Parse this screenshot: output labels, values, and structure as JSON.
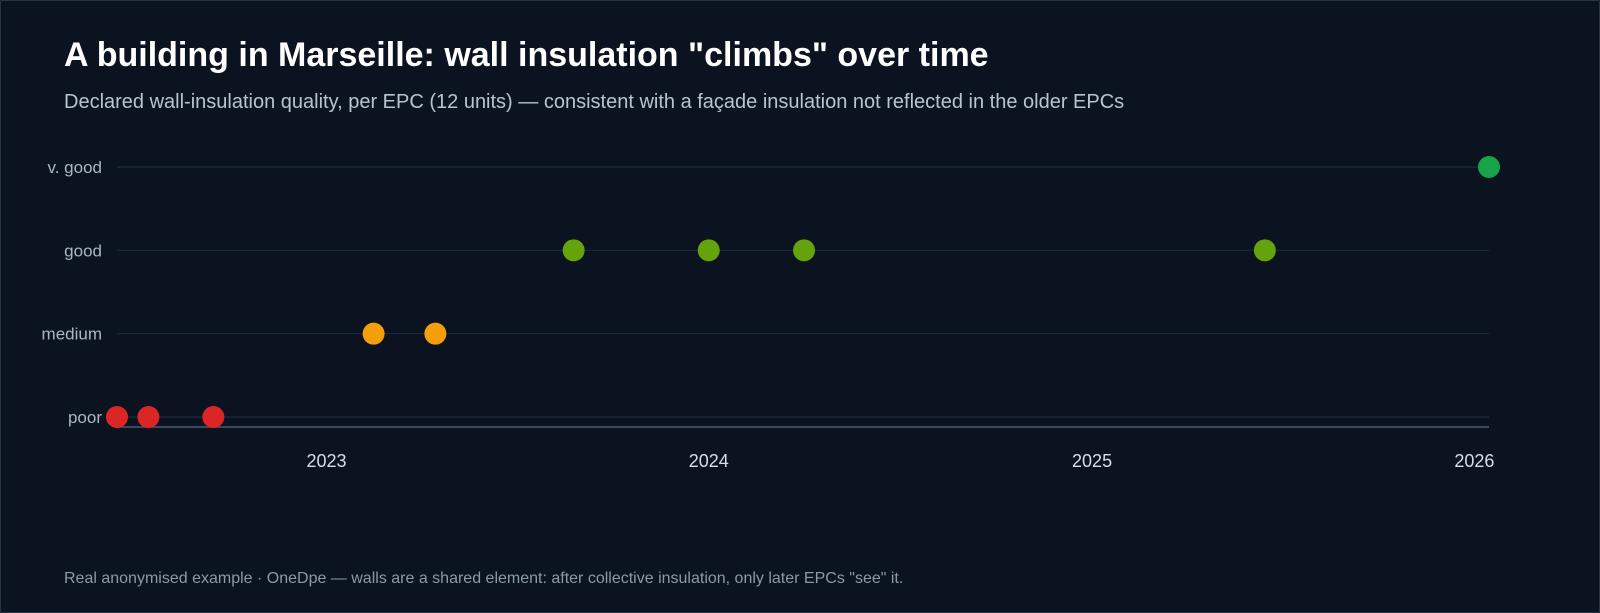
{
  "title": "A building in Marseille: wall insulation \"climbs\" over time",
  "subtitle": "Declared wall-insulation quality, per EPC (12 units) — consistent with a façade insulation not reflected in the older EPCs",
  "footer": "Real anonymised example · OneDpe — walls are a shared element: after collective insulation, only later EPCs \"see\" it.",
  "colors": {
    "poor": "#dc2626",
    "medium": "#f59e0b",
    "good": "#65a30d",
    "very_good": "#16a34a"
  },
  "chart_data": {
    "type": "scatter",
    "title": "A building in Marseille: wall insulation \"climbs\" over time",
    "subtitle": "Declared wall-insulation quality, per EPC (12 units) — consistent with a façade insulation not reflected in the older EPCs",
    "xlabel": "",
    "ylabel": "",
    "x_axis": {
      "type": "date",
      "range": [
        "2022-06-15",
        "2026-01-15"
      ],
      "ticks": [
        {
          "value": "2023-01-01",
          "label": "2023"
        },
        {
          "value": "2024-01-01",
          "label": "2024"
        },
        {
          "value": "2025-01-01",
          "label": "2025"
        },
        {
          "value": "2026-01-01",
          "label": "2026"
        }
      ]
    },
    "y_axis": {
      "type": "category",
      "categories": [
        "poor",
        "medium",
        "good",
        "v. good"
      ]
    },
    "grid": true,
    "points": [
      {
        "x": "2022-06-15",
        "y": "poor",
        "color_key": "poor"
      },
      {
        "x": "2022-07-15",
        "y": "poor",
        "color_key": "poor"
      },
      {
        "x": "2022-09-15",
        "y": "poor",
        "color_key": "poor"
      },
      {
        "x": "2023-02-15",
        "y": "medium",
        "color_key": "medium"
      },
      {
        "x": "2023-04-15",
        "y": "medium",
        "color_key": "medium"
      },
      {
        "x": "2023-08-25",
        "y": "good",
        "color_key": "good"
      },
      {
        "x": "2024-01-01",
        "y": "good",
        "color_key": "good"
      },
      {
        "x": "2024-04-01",
        "y": "good",
        "color_key": "good"
      },
      {
        "x": "2025-06-15",
        "y": "good",
        "color_key": "good"
      },
      {
        "x": "2026-01-15",
        "y": "v. good",
        "color_key": "very_good"
      }
    ]
  }
}
